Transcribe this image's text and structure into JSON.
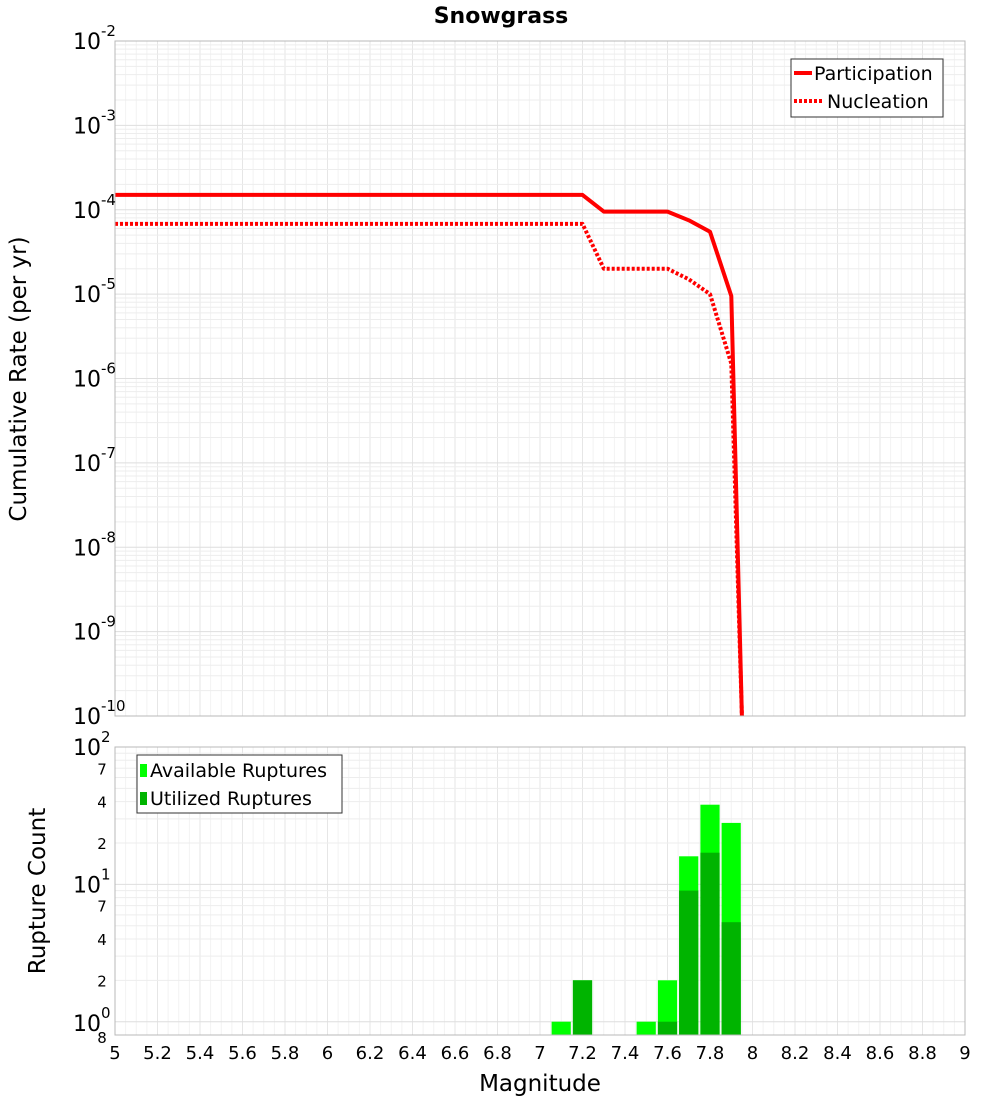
{
  "chart_data": [
    {
      "type": "line",
      "title": "Snowgrass",
      "ylabel": "Cumulative Rate (per yr)",
      "xlabel": "Magnitude",
      "yscale": "log",
      "ylim": [
        1e-10,
        0.01
      ],
      "xlim": [
        5,
        9
      ],
      "grid": true,
      "legend_position": "top-right",
      "y_ticks": [
        {
          "base": "10",
          "exp": "-2"
        },
        {
          "base": "10",
          "exp": "-3"
        },
        {
          "base": "10",
          "exp": "-4"
        },
        {
          "base": "10",
          "exp": "-5"
        },
        {
          "base": "10",
          "exp": "-6"
        },
        {
          "base": "10",
          "exp": "-7"
        },
        {
          "base": "10",
          "exp": "-8"
        },
        {
          "base": "10",
          "exp": "-9"
        },
        {
          "base": "10",
          "exp": "-10"
        }
      ],
      "series": [
        {
          "name": "Participation",
          "color": "#ff0000",
          "style": "solid",
          "x": [
            5.0,
            7.2,
            7.3,
            7.6,
            7.7,
            7.8,
            7.9,
            7.95
          ],
          "y": [
            0.00015,
            0.00015,
            9.5e-05,
            9.5e-05,
            7.5e-05,
            5.5e-05,
            9.5e-06,
            1e-10
          ]
        },
        {
          "name": "Nucleation",
          "color": "#ff0000",
          "style": "dotted",
          "x": [
            5.0,
            7.2,
            7.3,
            7.6,
            7.7,
            7.8,
            7.9,
            7.95
          ],
          "y": [
            6.8e-05,
            6.8e-05,
            2e-05,
            2e-05,
            1.5e-05,
            1e-05,
            1.5e-06,
            1e-10
          ]
        }
      ]
    },
    {
      "type": "bar",
      "ylabel": "Rupture Count",
      "xlabel": "Magnitude",
      "yscale": "log",
      "ylim": [
        0.8,
        100
      ],
      "xlim": [
        5,
        9
      ],
      "grid": true,
      "legend_position": "top-left",
      "x_ticks": [
        "5",
        "5.2",
        "5.4",
        "5.6",
        "5.8",
        "6",
        "6.2",
        "6.4",
        "6.6",
        "6.8",
        "7",
        "7.2",
        "7.4",
        "7.6",
        "7.8",
        "8",
        "8.2",
        "8.4",
        "8.6",
        "8.8",
        "9"
      ],
      "y_major_ticks": [
        {
          "base": "10",
          "exp": "0",
          "value": 1
        },
        {
          "base": "10",
          "exp": "1",
          "value": 10
        },
        {
          "base": "10",
          "exp": "2",
          "value": 100
        }
      ],
      "y_minor_ticks": [
        {
          "label": "8",
          "value": 0.8
        },
        {
          "label": "2",
          "value": 2
        },
        {
          "label": "4",
          "value": 4
        },
        {
          "label": "7",
          "value": 7
        },
        {
          "label": "2",
          "value": 20
        },
        {
          "label": "4",
          "value": 40
        },
        {
          "label": "7",
          "value": 70
        }
      ],
      "x": [
        7.1,
        7.2,
        7.5,
        7.6,
        7.7,
        7.8,
        7.9
      ],
      "series": [
        {
          "name": "Available Ruptures",
          "color": "#00ff00",
          "values": [
            1,
            2,
            1,
            2,
            16,
            38,
            28
          ]
        },
        {
          "name": "Utilized Ruptures",
          "color": "#00b400",
          "values": [
            0,
            2,
            0,
            1,
            9,
            17,
            5.3
          ]
        }
      ]
    }
  ]
}
